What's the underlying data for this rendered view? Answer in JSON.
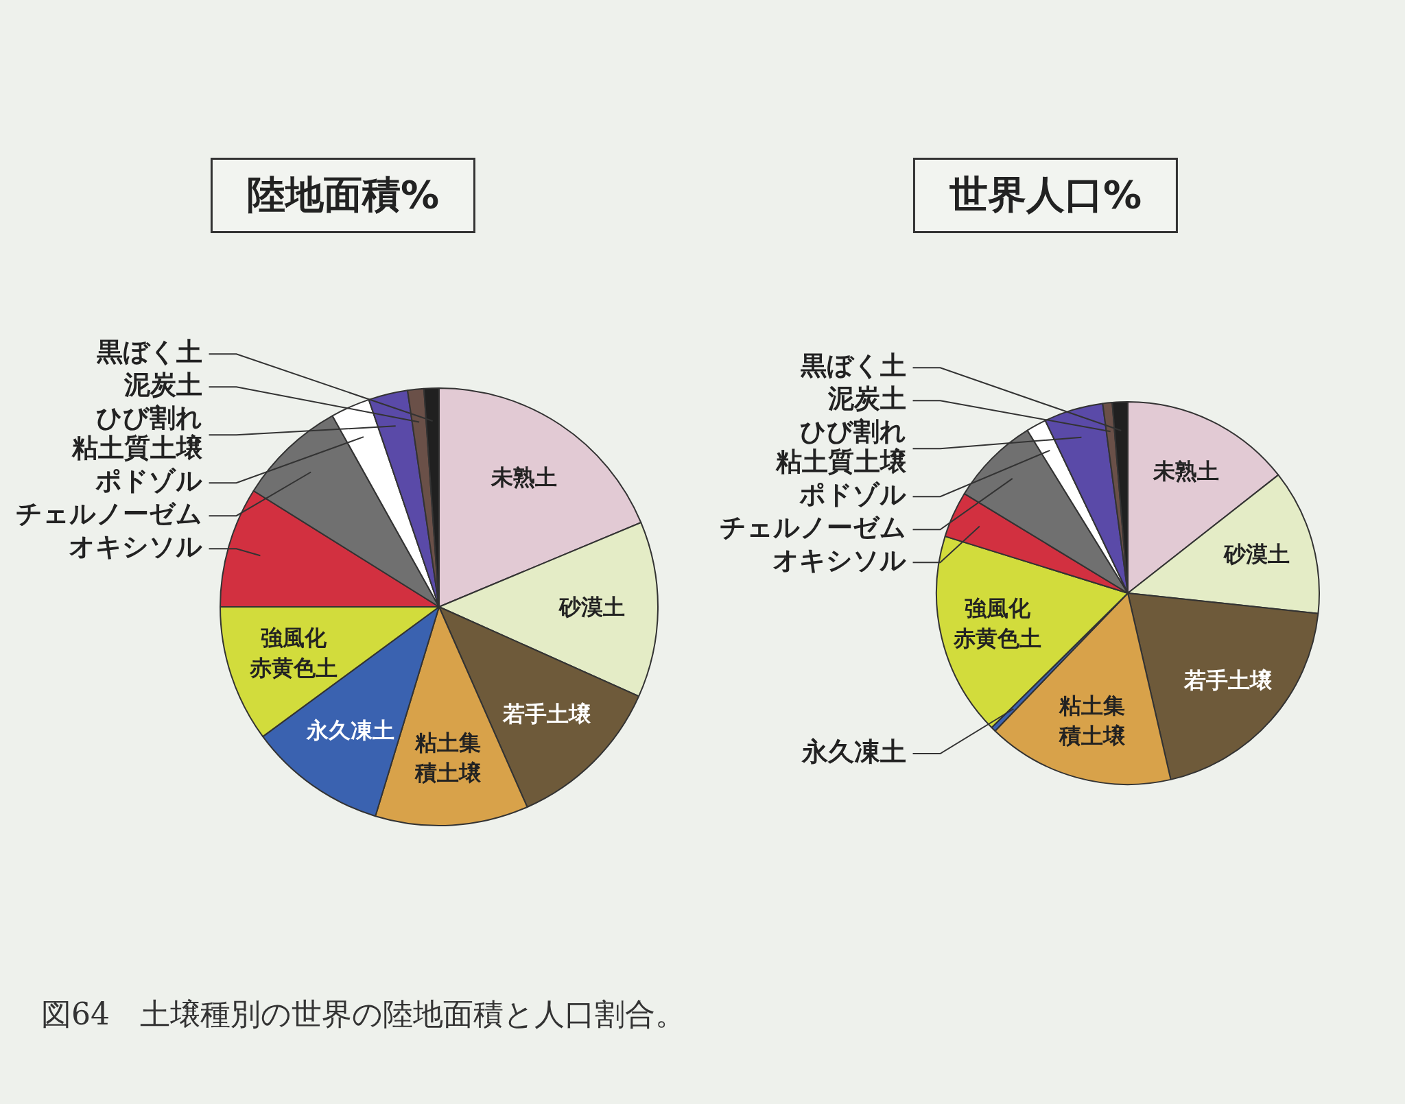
{
  "chart_data": [
    {
      "type": "pie",
      "title": "陸地面積%",
      "categories": [
        "未熟土",
        "砂漠土",
        "若手土壌",
        "粘土集積土壌",
        "永久凍土",
        "強風化赤黄色土",
        "オキシソル",
        "チェルノーゼム",
        "ポドゾル",
        "ひび割れ粘土質土壌",
        "泥炭土",
        "黒ぼく土"
      ],
      "values": [
        18.7,
        13,
        11.7,
        11.3,
        10.2,
        10.1,
        8.9,
        8,
        2.9,
        2.9,
        1.2,
        1.1
      ],
      "colors": [
        "#e2cad4",
        "#e4ecc6",
        "#6e5a3a",
        "#d8a24a",
        "#3a62b0",
        "#d2dc3c",
        "#d23040",
        "#707070",
        "#ffffff",
        "#5a4aa8",
        "#6a5048",
        "#202020"
      ],
      "legend": false
    },
    {
      "type": "pie",
      "title": "世界人口%",
      "categories": [
        "未熟土",
        "砂漠土",
        "若手土壌",
        "粘土集積土壌",
        "永久凍土",
        "強風化赤黄色土",
        "オキシソル",
        "チェルノーゼム",
        "ポドゾル",
        "ひび割れ粘土質土壌",
        "泥炭土",
        "黒ぼく土"
      ],
      "values": [
        14.4,
        12.3,
        19.7,
        15.8,
        0.4,
        17.2,
        3.9,
        7.5,
        1.7,
        5,
        0.8,
        1.3
      ],
      "colors": [
        "#e2cad4",
        "#e4ecc6",
        "#6e5a3a",
        "#d8a24a",
        "#3a62b0",
        "#d2dc3c",
        "#d23040",
        "#707070",
        "#ffffff",
        "#5a4aa8",
        "#6a5048",
        "#202020"
      ],
      "legend": false,
      "annotations": [
        "図64　土壌種別の世界の陸地面積と人口割合。"
      ]
    }
  ]
}
